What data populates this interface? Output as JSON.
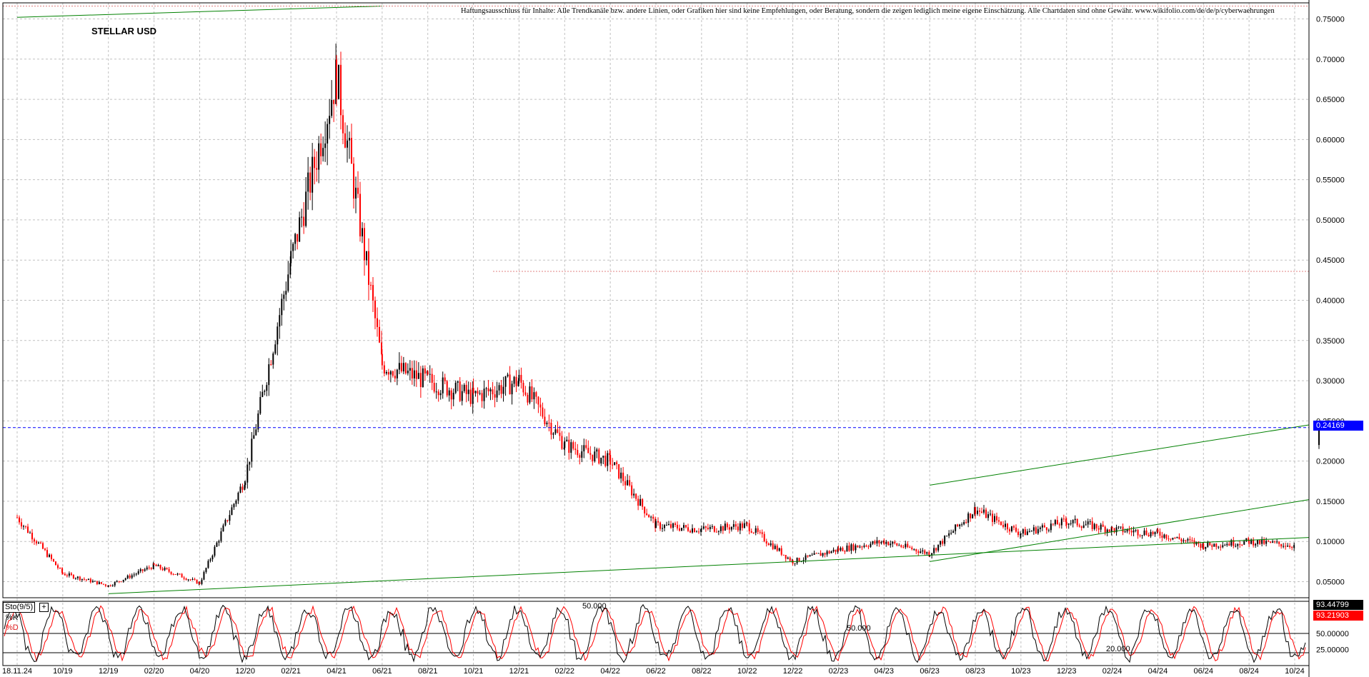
{
  "header": {
    "disclaimer": "Haftungsausschluss für Inhalte: Alle Trendkanäle bzw. andere Linien, oder Grafiken hier sind keine Empfehlungen, oder Beratung, sondern die zeigen lediglich meine eigene Einschätzung. Alle Chartdaten sind ohne Gewähr. www.wikifolio.com/de/de/p/cyberwaehrungen",
    "symbol": "STELLAR USD"
  },
  "indicator": {
    "label": "Sto(9/5)",
    "plus": "+",
    "k_label": "%K",
    "d_label": "%D",
    "k_value": "93.44799",
    "d_value": "93.21903",
    "level_50_a": "50.000",
    "level_50_b": "50.000",
    "level_20": "20.000",
    "right_50": "50.00000",
    "right_25": "25.00000"
  },
  "current_price": "0.24169",
  "colors": {
    "up": "#000000",
    "down": "#ff0000",
    "trendline": "#008000",
    "price_line": "#0000ff",
    "price_tag_bg": "#0000ff",
    "k_tag_bg": "#000000",
    "d_tag_bg": "#ff0000",
    "grid": "#c0c0c0",
    "high_line": "#e08080"
  },
  "chart_data": {
    "type": "candlestick",
    "symbol": "STELLAR USD",
    "ylim": [
      0.03,
      0.77
    ],
    "y_ticks": [
      "0.05000",
      "0.10000",
      "0.15000",
      "0.20000",
      "0.25000",
      "0.30000",
      "0.35000",
      "0.40000",
      "0.45000",
      "0.50000",
      "0.55000",
      "0.60000",
      "0.65000",
      "0.70000",
      "0.75000"
    ],
    "x_ticks": [
      "18.11.24",
      "10/19",
      "12/19",
      "02/20",
      "04/20",
      "12/20",
      "02/21",
      "04/21",
      "06/21",
      "08/21",
      "10/21",
      "12/21",
      "02/22",
      "04/22",
      "06/22",
      "08/22",
      "10/22",
      "12/22",
      "02/23",
      "04/23",
      "06/23",
      "08/23",
      "10/23",
      "12/23",
      "02/24",
      "04/24",
      "06/24",
      "08/24",
      "10/24"
    ],
    "series": [
      {
        "values": [
          {
            "x": "18.11.24",
            "y": 0.13
          },
          {
            "x": "10/19",
            "y": 0.06
          },
          {
            "x": "12/19",
            "y": 0.045
          },
          {
            "x": "02/20",
            "y": 0.07
          },
          {
            "x": "04/20",
            "y": 0.048
          },
          {
            "x": "12/20",
            "y": 0.18
          },
          {
            "x": "02/21",
            "y": 0.45
          },
          {
            "x": "04/21",
            "y": 0.68
          },
          {
            "x": "06/21",
            "y": 0.32
          },
          {
            "x": "08/21",
            "y": 0.3
          },
          {
            "x": "10/21",
            "y": 0.28
          },
          {
            "x": "12/21",
            "y": 0.3
          },
          {
            "x": "02/22",
            "y": 0.22
          },
          {
            "x": "04/22",
            "y": 0.2
          },
          {
            "x": "06/22",
            "y": 0.12
          },
          {
            "x": "08/22",
            "y": 0.115
          },
          {
            "x": "10/22",
            "y": 0.12
          },
          {
            "x": "12/22",
            "y": 0.075
          },
          {
            "x": "02/23",
            "y": 0.09
          },
          {
            "x": "04/23",
            "y": 0.1
          },
          {
            "x": "06/23",
            "y": 0.085
          },
          {
            "x": "08/23",
            "y": 0.14
          },
          {
            "x": "10/23",
            "y": 0.11
          },
          {
            "x": "12/23",
            "y": 0.125
          },
          {
            "x": "02/24",
            "y": 0.115
          },
          {
            "x": "04/24",
            "y": 0.11
          },
          {
            "x": "06/24",
            "y": 0.095
          },
          {
            "x": "08/24",
            "y": 0.1
          },
          {
            "x": "10/24",
            "y": 0.095
          }
        ]
      }
    ],
    "current": 0.24169,
    "trendlines": [
      {
        "from": {
          "x": "18.11.24",
          "y": 0.752
        },
        "to": {
          "x": "06/21",
          "y": 0.766
        }
      },
      {
        "from": {
          "x": "12/19",
          "y": 0.035
        },
        "to": {
          "x": "10/24",
          "y": 0.105
        }
      },
      {
        "from": {
          "x": "06/23",
          "y": 0.17
        },
        "to": {
          "x": "10/24",
          "y": 0.245
        }
      },
      {
        "from": {
          "x": "06/23",
          "y": 0.075
        },
        "to": {
          "x": "10/24",
          "y": 0.152
        }
      }
    ],
    "grid": true
  }
}
